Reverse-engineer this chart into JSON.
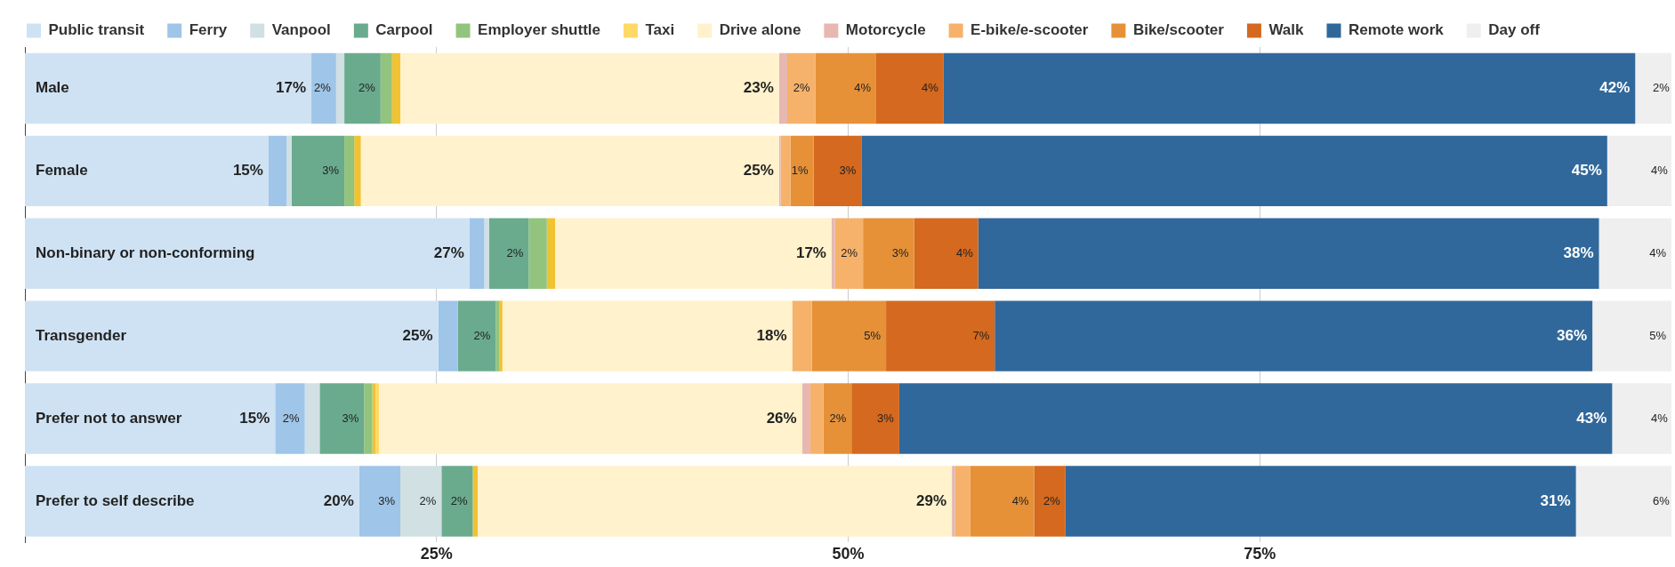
{
  "chart_data": {
    "type": "bar",
    "orientation": "horizontal",
    "stacked": true,
    "grid": "x",
    "legend": "top left",
    "categories": [
      "Male",
      "Female",
      "Non-binary or non-conforming",
      "Transgender",
      "Prefer not to answer",
      "Prefer to self describe"
    ],
    "xlim": [
      0,
      100
    ],
    "xticks": [
      {
        "value": 25,
        "label": "25%"
      },
      {
        "value": 50,
        "label": "50%"
      },
      {
        "value": 75,
        "label": "75%"
      }
    ],
    "series": [
      {
        "name": "Public transit",
        "color": "#cfe2f3",
        "values": [
          17.4,
          14.8,
          27.0,
          25.1,
          15.2,
          20.3
        ],
        "value_labels": [
          "17%",
          "15%",
          "27%",
          "25%",
          "15%",
          "20%"
        ]
      },
      {
        "name": "Ferry",
        "color": "#9fc5e8",
        "values": [
          1.5,
          1.1,
          0.9,
          1.2,
          1.8,
          2.5
        ],
        "value_labels": [
          "2%",
          null,
          null,
          null,
          "2%",
          "3%"
        ]
      },
      {
        "name": "Vanpool",
        "color": "#d0e0e3",
        "values": [
          0.5,
          0.3,
          0.3,
          0,
          0.9,
          2.5
        ],
        "value_labels": [
          null,
          null,
          null,
          null,
          null,
          "2%"
        ]
      },
      {
        "name": "Carpool",
        "color": "#6aab8e",
        "values": [
          2.2,
          3.2,
          2.4,
          2.3,
          2.7,
          1.9
        ],
        "value_labels": [
          "2%",
          "3%",
          "2%",
          "2%",
          "3%",
          "2%"
        ]
      },
      {
        "name": "Employer shuttle",
        "color": "#93c47d",
        "values": [
          0.7,
          0.6,
          1.1,
          0.2,
          0.5,
          0
        ],
        "value_labels": [
          null,
          null,
          null,
          null,
          null,
          null
        ]
      },
      {
        "color": "#f1c232",
        "values": [
          0.5,
          0.4,
          0.5,
          0.2,
          0.2,
          0.3
        ],
        "value_labels": [
          null,
          null,
          null,
          null,
          null,
          null
        ]
      },
      {
        "name": "Taxi",
        "color": "#ffd966",
        "values": [
          0,
          0,
          0,
          0,
          0.2,
          0
        ],
        "value_labels": [
          null,
          null,
          null,
          null,
          null,
          null
        ]
      },
      {
        "name": "Drive alone",
        "color": "#fff2cc",
        "values": [
          23.0,
          25.4,
          16.8,
          17.6,
          25.7,
          28.8
        ],
        "value_labels": [
          "23%",
          "25%",
          "17%",
          "18%",
          "26%",
          "29%"
        ]
      },
      {
        "name": "Motorcycle",
        "color": "#e6b8af",
        "values": [
          0.5,
          0.1,
          0.2,
          0,
          0.5,
          0.2
        ],
        "value_labels": [
          null,
          null,
          null,
          null,
          null,
          null
        ]
      },
      {
        "name": "E-bike/e-scooter",
        "color": "#f6b26b",
        "values": [
          1.7,
          0.6,
          1.7,
          1.2,
          0.8,
          0.9
        ],
        "value_labels": [
          "2%",
          null,
          "2%",
          null,
          null,
          null
        ]
      },
      {
        "name": "Bike/scooter",
        "color": "#e69138",
        "values": [
          3.7,
          1.4,
          3.1,
          4.5,
          1.7,
          3.9
        ],
        "value_labels": [
          "4%",
          "1%",
          "3%",
          "5%",
          "2%",
          "4%"
        ]
      },
      {
        "name": "Walk",
        "color": "#d4691f",
        "values": [
          4.1,
          2.9,
          3.9,
          6.6,
          2.9,
          1.9
        ],
        "value_labels": [
          "4%",
          "3%",
          "4%",
          "7%",
          "3%",
          "2%"
        ]
      },
      {
        "name": "Remote work",
        "color": "#31689b",
        "values": [
          42.0,
          45.3,
          37.7,
          36.3,
          43.3,
          31.0
        ],
        "value_labels": [
          "42%",
          "45%",
          "38%",
          "36%",
          "43%",
          "31%"
        ]
      },
      {
        "name": "Day off",
        "color": "#efefef",
        "values": [
          2.4,
          4.0,
          4.4,
          4.8,
          3.7,
          6.0
        ],
        "value_labels": [
          "2%",
          "4%",
          "4%",
          "5%",
          "4%",
          "6%"
        ]
      }
    ]
  }
}
